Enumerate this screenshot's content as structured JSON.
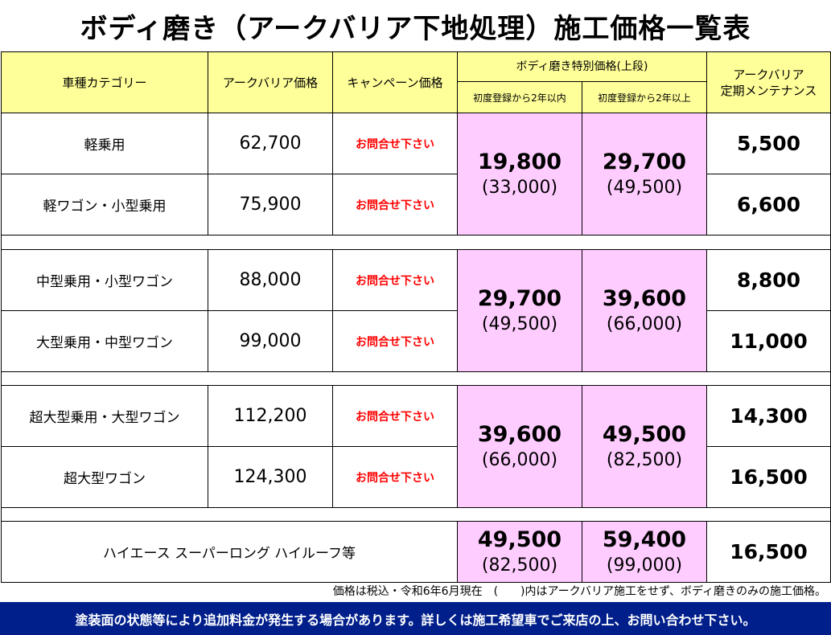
{
  "title": "ボディ磨き（アークバリア下地処理）施工価格一覧表",
  "headers": {
    "category": "車種カテゴリー",
    "arcbarrier_price": "アークバリア価格",
    "campaign_price": "キャンペーン価格",
    "special_price": "ボディ磨き特別価格(上段)",
    "within_2y": "初度登録から2年以内",
    "over_2y": "初度登録から2年以上",
    "maintenance_line1": "アークバリア",
    "maintenance_line2": "定期メンテナンス"
  },
  "groups": [
    {
      "rows": [
        {
          "category": "軽乗用",
          "price": "62,700",
          "campaign": "お問合せ下さい",
          "maintenance": "5,500"
        },
        {
          "category": "軽ワゴン・小型乗用",
          "price": "75,900",
          "campaign": "お問合せ下さい",
          "maintenance": "6,600"
        }
      ],
      "within_main": "19,800",
      "within_sub": "(33,000)",
      "over_main": "29,700",
      "over_sub": "(49,500)"
    },
    {
      "rows": [
        {
          "category": "中型乗用・小型ワゴン",
          "price": "88,000",
          "campaign": "お問合せ下さい",
          "maintenance": "8,800"
        },
        {
          "category": "大型乗用・中型ワゴン",
          "price": "99,000",
          "campaign": "お問合せ下さい",
          "maintenance": "11,000"
        }
      ],
      "within_main": "29,700",
      "within_sub": "(49,500)",
      "over_main": "39,600",
      "over_sub": "(66,000)"
    },
    {
      "rows": [
        {
          "category": "超大型乗用・大型ワゴン",
          "price": "112,200",
          "campaign": "お問合せ下さい",
          "maintenance": "14,300"
        },
        {
          "category": "超大型ワゴン",
          "price": "124,300",
          "campaign": "お問合せ下さい",
          "maintenance": "16,500"
        }
      ],
      "within_main": "39,600",
      "within_sub": "(66,000)",
      "over_main": "49,500",
      "over_sub": "(82,500)"
    }
  ],
  "hiace": {
    "category": "ハイエース スーパーロング ハイルーフ等",
    "within_main": "49,500",
    "within_sub": "(82,500)",
    "over_main": "59,400",
    "over_sub": "(99,000)",
    "maintenance": "16,500"
  },
  "footnote": "価格は税込・令和6年6月現在　(　　)内はアークバリア施工をせず、ボディ磨きのみの施工価格。",
  "banner": "塗装面の状態等により追加料金が発生する場合があります。詳しくは施工希望車でご来店の上、お問い合わせ下さい。",
  "colors": {
    "header_bg": "#ffff99",
    "special_bg": "#ffccff",
    "campaign_text": "#ff0000",
    "banner_bg": "#001f8a"
  }
}
